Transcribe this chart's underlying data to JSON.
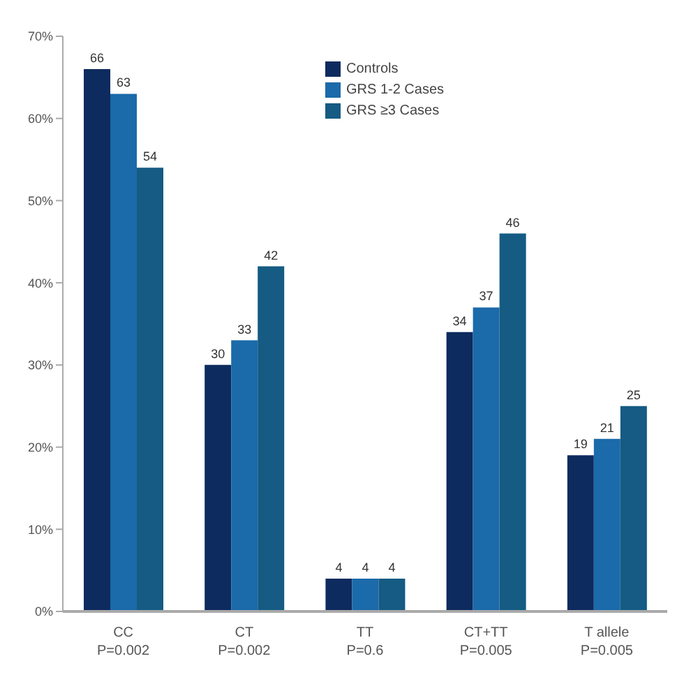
{
  "chart_data": {
    "type": "bar",
    "categories": [
      "CC\nP=0.002",
      "CT\nP=0.002",
      "TT\nP=0.6",
      "CT+TT\nP=0.005",
      "T allele\nP=0.005"
    ],
    "series": [
      {
        "name": "Controls",
        "color": "#0d2b5e",
        "values": [
          66,
          30,
          4,
          34,
          19
        ]
      },
      {
        "name": "GRS 1-2 Cases",
        "color": "#1b6aaa",
        "values": [
          63,
          33,
          4,
          37,
          21
        ]
      },
      {
        "name": "GRS ≥3 Cases",
        "color": "#155b83",
        "values": [
          54,
          42,
          4,
          46,
          25
        ]
      }
    ],
    "ylim": [
      0,
      70
    ],
    "yticks": [
      {
        "value": 0,
        "label": "0%"
      },
      {
        "value": 10,
        "label": "10%"
      },
      {
        "value": 20,
        "label": "20%"
      },
      {
        "value": 30,
        "label": "30%"
      },
      {
        "value": 40,
        "label": "40%"
      },
      {
        "value": 50,
        "label": "50%"
      },
      {
        "value": 60,
        "label": "60%"
      },
      {
        "value": 70,
        "label": "70%"
      }
    ],
    "data_labels": true,
    "legend": "top"
  }
}
